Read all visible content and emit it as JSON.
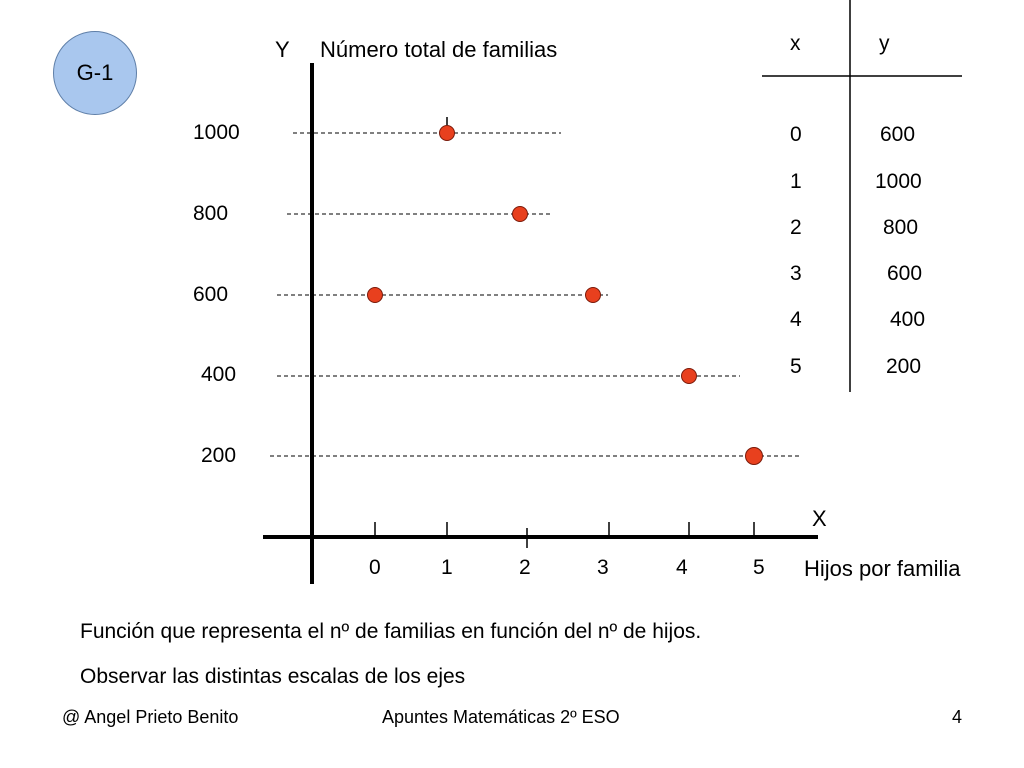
{
  "badge": "G-1",
  "chart_data": {
    "type": "scatter",
    "title": "",
    "ylabel_letter": "Y",
    "ylabel": "Número total de familias",
    "xlabel_letter": "X",
    "xlabel": "Hijos por familia",
    "x": [
      0,
      1,
      2,
      3,
      4,
      5
    ],
    "y": [
      600,
      1000,
      800,
      600,
      400,
      200
    ],
    "x_ticks": [
      "0",
      "1",
      "2",
      "3",
      "4",
      "5"
    ],
    "y_ticks": [
      "200",
      "400",
      "600",
      "800",
      "1000"
    ],
    "guide_lines": "dashed horizontal at each y tick",
    "grid": false,
    "point_color": "#e8401e",
    "table": {
      "headers": [
        "x",
        "y"
      ],
      "rows": [
        [
          "0",
          "600"
        ],
        [
          "1",
          "1000"
        ],
        [
          "2",
          "800"
        ],
        [
          "3",
          "600"
        ],
        [
          "4",
          "400"
        ],
        [
          "5",
          "200"
        ]
      ]
    }
  },
  "caption": {
    "line1": "Función que representa el nº de familias en función del nº de hijos.",
    "line2": "Observar las distintas escalas de los ejes"
  },
  "footer": {
    "author": "@ Angel Prieto Benito",
    "course": "Apuntes Matemáticas 2º ESO",
    "page": "4"
  }
}
